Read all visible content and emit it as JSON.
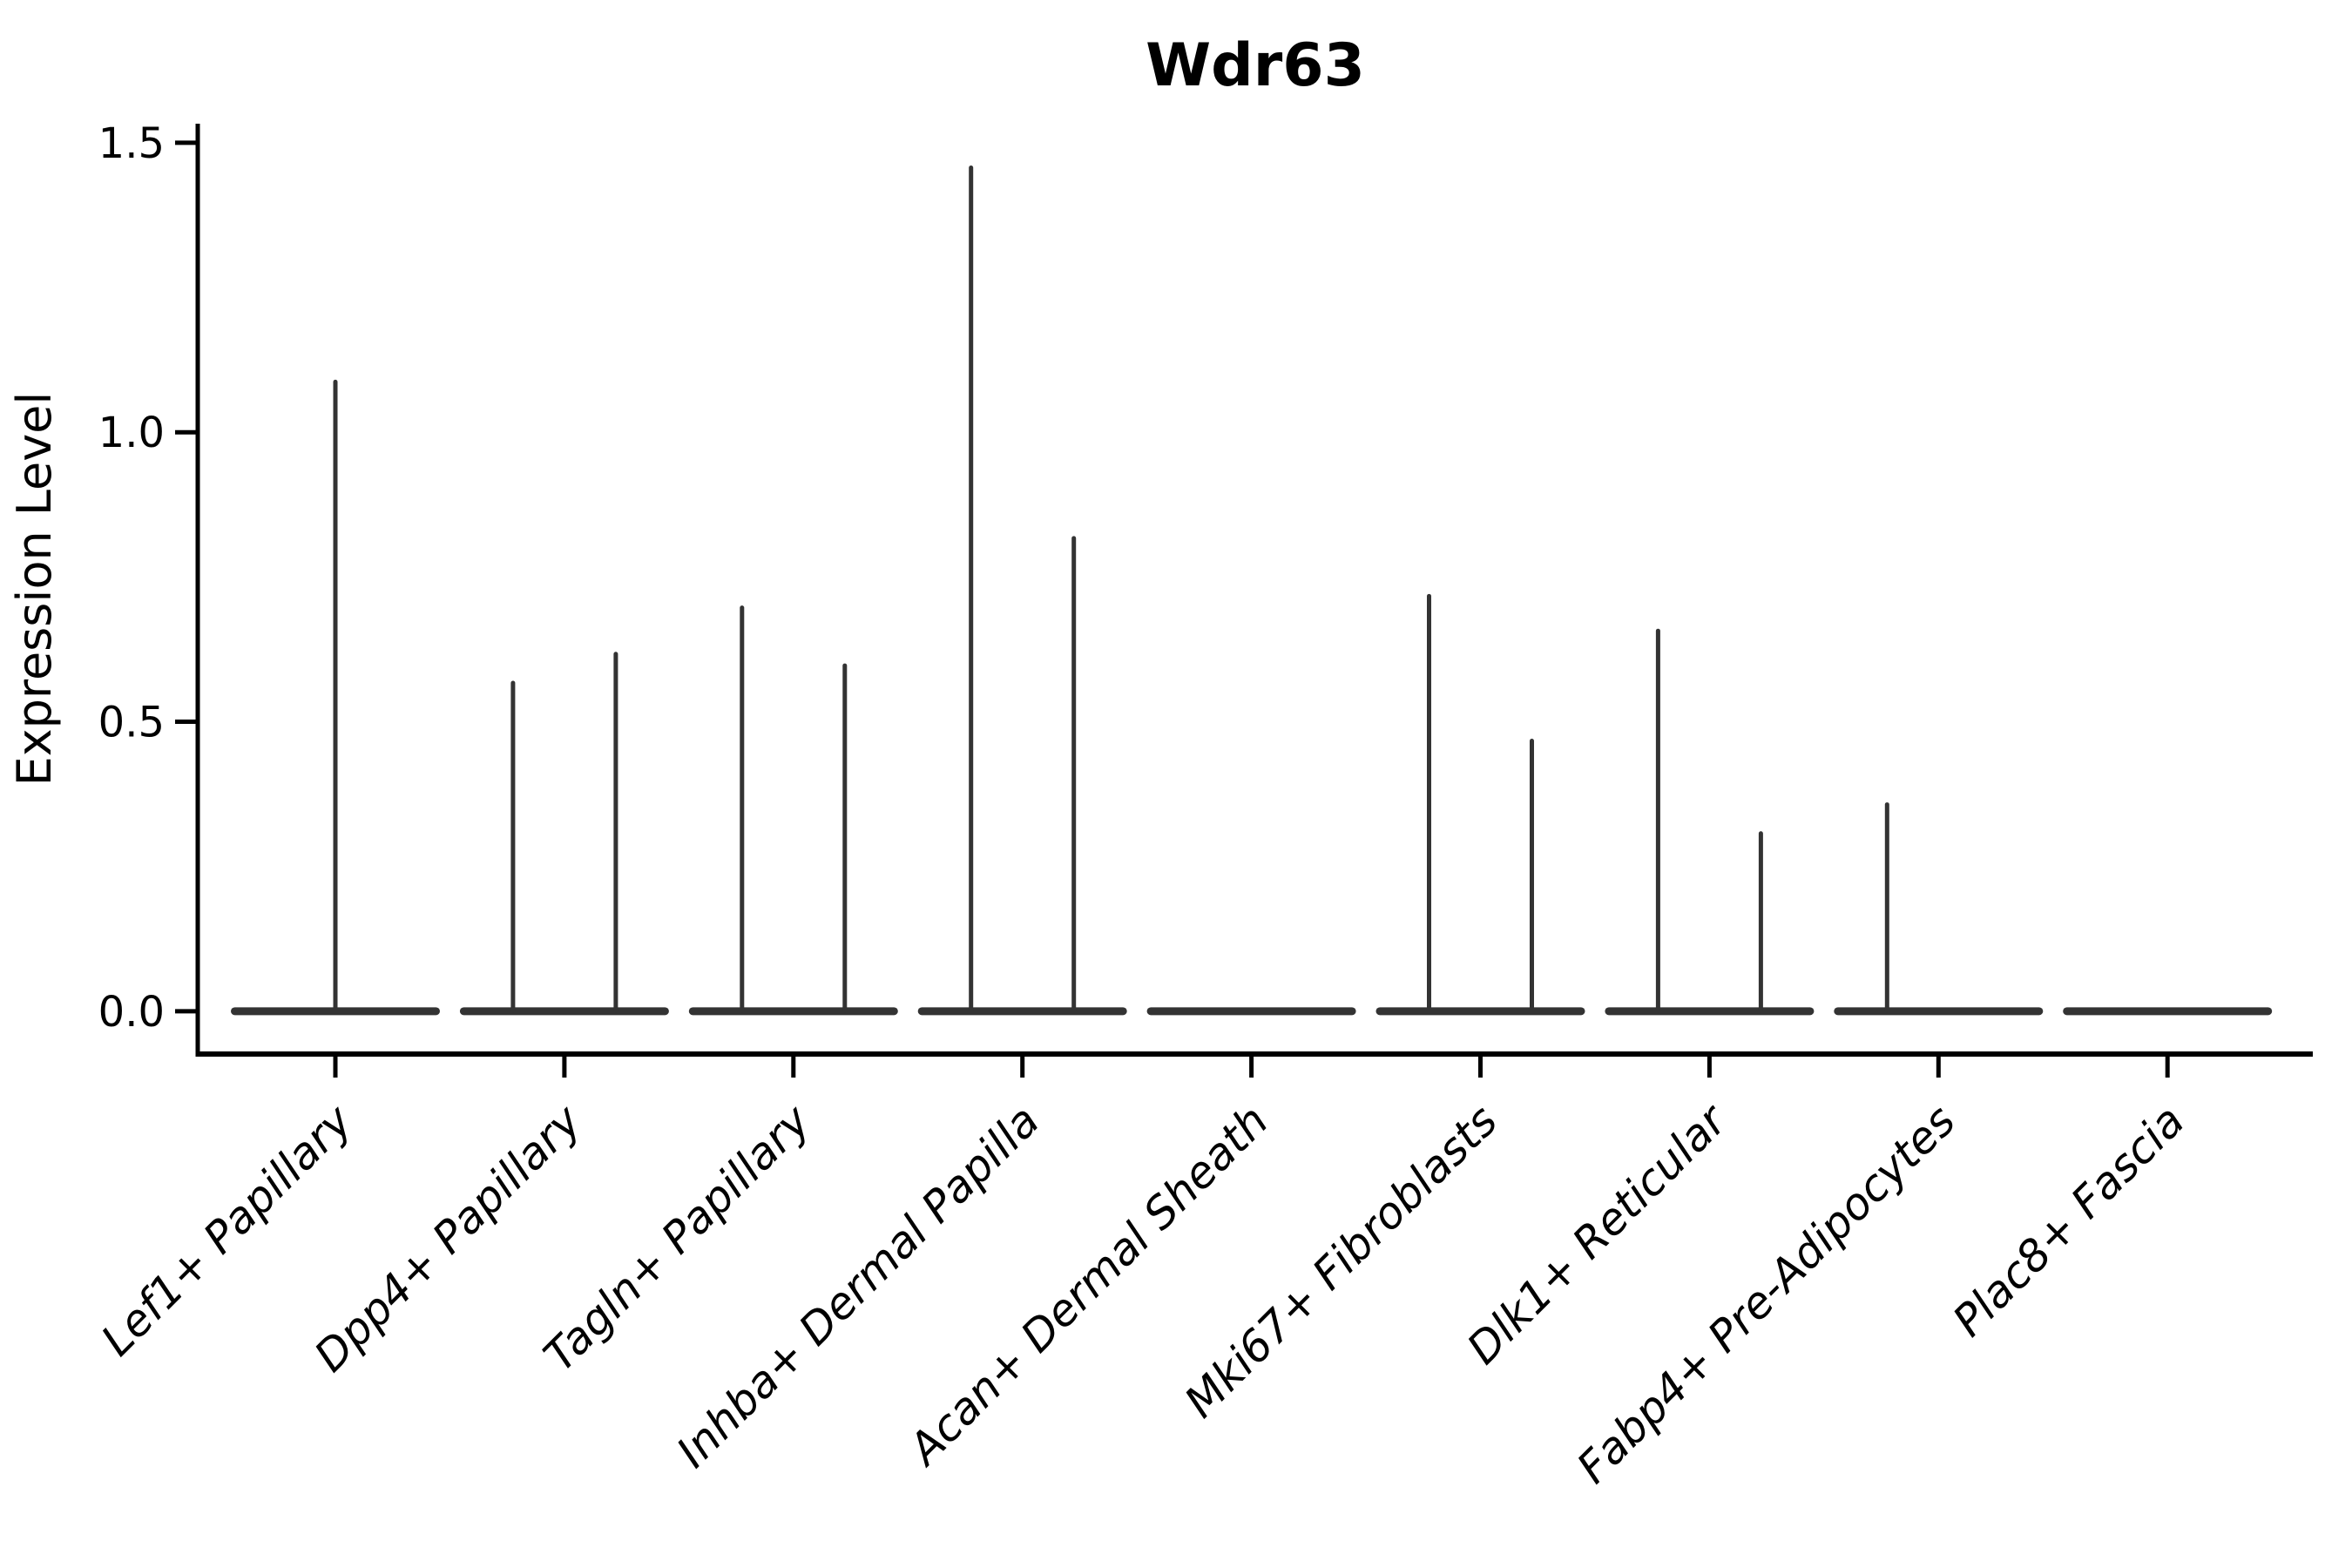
{
  "page": {
    "background": "#ffffff"
  },
  "chart_data": {
    "type": "violin",
    "title": "Wdr63",
    "xlabel": "",
    "ylabel": "Expression Level",
    "yticks": [
      "0.0",
      "0.5",
      "1.0",
      "1.5"
    ],
    "ytick_values": [
      0.0,
      0.5,
      1.0,
      1.5
    ],
    "ylim": [
      -0.074,
      1.533
    ],
    "grid": false,
    "legend": "none",
    "x_tick_rotation_deg": 45,
    "categories": [
      "Lef1+ Papillary",
      "Dpp4+ Papillary",
      "Tagln+ Papillary",
      "Inhba+ Dermal Papilla",
      "Acan+ Dermal Sheath",
      "Mki67+ Fibroblasts",
      "Dlk1+ Reticular",
      "Fabp4+ Pre-Adipocytes",
      "Plac8+ Fascia"
    ],
    "violins": [
      {
        "category": "Lef1+ Papillary",
        "baseline": 0.0,
        "spikes": [
          {
            "position": "center",
            "max": 1.09
          }
        ]
      },
      {
        "category": "Dpp4+ Papillary",
        "baseline": 0.0,
        "spikes": [
          {
            "position": "left",
            "max": 0.57
          },
          {
            "position": "right",
            "max": 0.62
          }
        ]
      },
      {
        "category": "Tagln+ Papillary",
        "baseline": 0.0,
        "spikes": [
          {
            "position": "left",
            "max": 0.7
          },
          {
            "position": "right",
            "max": 0.6
          }
        ]
      },
      {
        "category": "Inhba+ Dermal Papilla",
        "baseline": 0.0,
        "spikes": [
          {
            "position": "left",
            "max": 1.46
          },
          {
            "position": "right",
            "max": 0.82
          }
        ]
      },
      {
        "category": "Acan+ Dermal Sheath",
        "baseline": 0.0,
        "spikes": []
      },
      {
        "category": "Mki67+ Fibroblasts",
        "baseline": 0.0,
        "spikes": [
          {
            "position": "left",
            "max": 0.72
          },
          {
            "position": "right",
            "max": 0.47
          }
        ]
      },
      {
        "category": "Dlk1+ Reticular",
        "baseline": 0.0,
        "spikes": [
          {
            "position": "left",
            "max": 0.66
          },
          {
            "position": "right",
            "max": 0.31
          }
        ]
      },
      {
        "category": "Fabp4+ Pre-Adipocytes",
        "baseline": 0.0,
        "spikes": [
          {
            "position": "left",
            "max": 0.36
          }
        ]
      },
      {
        "category": "Plac8+ Fascia",
        "baseline": 0.0,
        "spikes": []
      }
    ],
    "colors": {
      "violin": "#333333",
      "axis": "#000000",
      "text": "#000000"
    }
  }
}
